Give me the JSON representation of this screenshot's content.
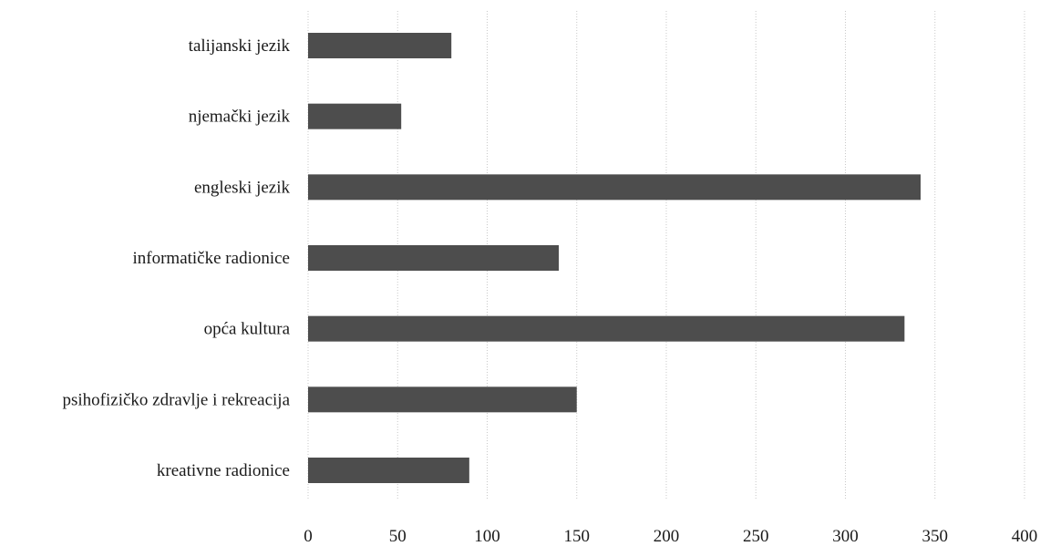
{
  "chart_data": {
    "type": "bar",
    "orientation": "horizontal",
    "categories": [
      "kreativne radionice",
      "psihofizičko zdravlje i rekreacija",
      "opća kultura",
      "informatičke radionice",
      "engleski jezik",
      "njemački jezik",
      "talijanski jezik"
    ],
    "values": [
      90,
      150,
      333,
      140,
      342,
      52,
      80
    ],
    "xlim": [
      0,
      400
    ],
    "xticks": [
      "0",
      "50",
      "100",
      "150",
      "200",
      "250",
      "300",
      "350",
      "400"
    ],
    "title": "",
    "xlabel": "",
    "ylabel": "",
    "grid": "vertical",
    "bar_color": "#4d4d4d"
  }
}
